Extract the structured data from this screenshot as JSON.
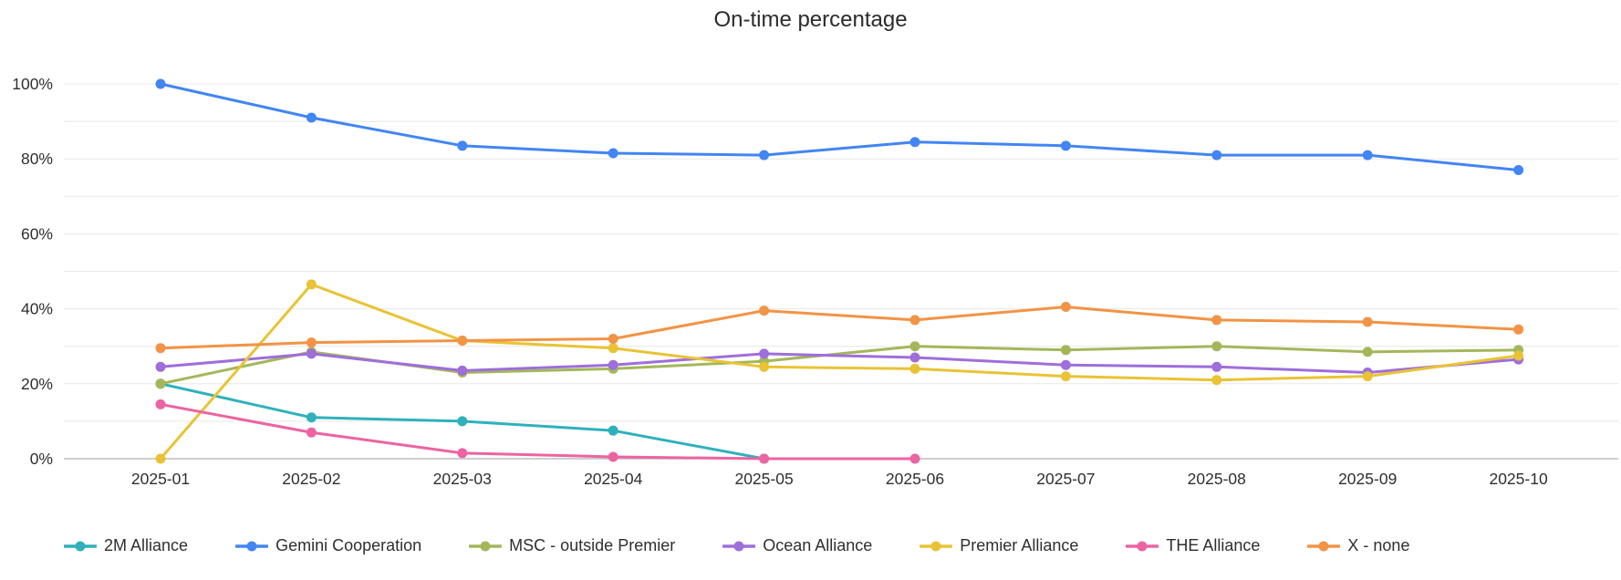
{
  "chart_data": {
    "type": "line",
    "title": "On-time percentage",
    "x_categories": [
      "2025-01",
      "2025-02",
      "2025-03",
      "2025-04",
      "2025-05",
      "2025-06",
      "2025-07",
      "2025-08",
      "2025-09",
      "2025-10"
    ],
    "y_axis": {
      "min": 0,
      "max": 100,
      "unit": "%",
      "grid_step": 10,
      "label_step": 20,
      "tick_labels": [
        "0%",
        "20%",
        "40%",
        "60%",
        "80%",
        "100%"
      ]
    },
    "grid": true,
    "legend_position": "bottom",
    "series": [
      {
        "name": "2M Alliance",
        "color": "#2eb1bc",
        "values": [
          20,
          11,
          10,
          7.5,
          0,
          null,
          null,
          null,
          null,
          null
        ]
      },
      {
        "name": "Gemini Cooperation",
        "color": "#4285f4",
        "values": [
          100,
          91,
          83.5,
          81.5,
          81,
          84.5,
          83.5,
          81,
          81,
          77
        ]
      },
      {
        "name": "MSC - outside Premier",
        "color": "#a3b75a",
        "values": [
          20,
          28.5,
          23,
          24,
          26,
          30,
          29,
          30,
          28.5,
          29
        ]
      },
      {
        "name": "Ocean Alliance",
        "color": "#9e6edb",
        "values": [
          24.5,
          28,
          23.5,
          25,
          28,
          27,
          25,
          24.5,
          23,
          26.5
        ]
      },
      {
        "name": "Premier Alliance",
        "color": "#e9c335",
        "values": [
          0,
          46.5,
          31.5,
          29.5,
          24.5,
          24,
          22,
          21,
          22,
          27.5
        ]
      },
      {
        "name": "THE Alliance",
        "color": "#ec64a2",
        "values": [
          14.5,
          7,
          1.5,
          0.5,
          0,
          0,
          null,
          null,
          null,
          null
        ]
      },
      {
        "name": "X - none",
        "color": "#f29345",
        "values": [
          29.5,
          31,
          31.5,
          32,
          39.5,
          37,
          40.5,
          37,
          36.5,
          34.5
        ]
      }
    ]
  }
}
